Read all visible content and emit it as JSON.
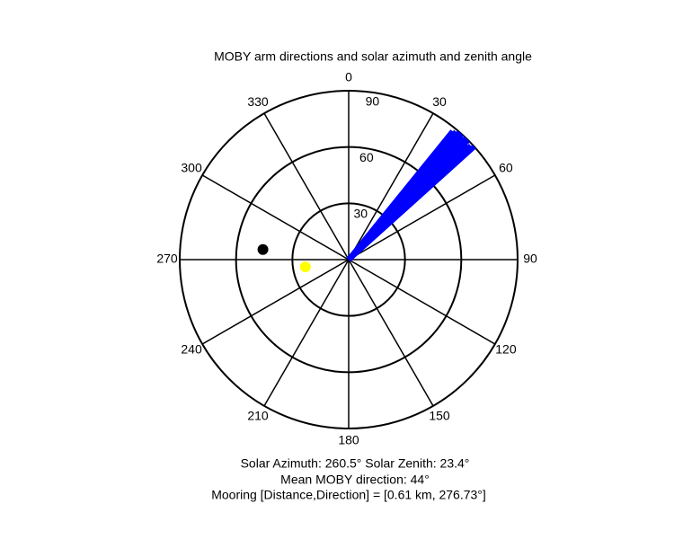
{
  "chart_data": {
    "type": "polar",
    "title": "MOBY arm directions and solar azimuth and zenith angle",
    "thetaticks": [
      0,
      30,
      60,
      90,
      120,
      150,
      180,
      210,
      240,
      270,
      300,
      330
    ],
    "rlim": [
      0,
      90
    ],
    "rticks": [
      30,
      60,
      90
    ],
    "series": [
      {
        "kind": "lines",
        "color": "#0000ff",
        "theta": [
          39,
          40,
          41,
          42,
          43,
          44,
          45,
          46,
          47,
          48
        ],
        "r": [
          88,
          89,
          90,
          90,
          89,
          90,
          90,
          88,
          89,
          90
        ]
      },
      {
        "kind": "point",
        "color": "#000000",
        "theta": [
          276.73
        ],
        "r": [
          46
        ]
      },
      {
        "kind": "point",
        "color": "#ffff00",
        "theta": [
          260.5
        ],
        "r": [
          23.4
        ]
      }
    ],
    "notes": [
      "Solar Azimuth: 260.5°   Solar Zenith: 23.4°",
      "Mean MOBY direction: 44°",
      "Mooring [Distance,Direction] = [0.61 km, 276.73°]"
    ]
  }
}
